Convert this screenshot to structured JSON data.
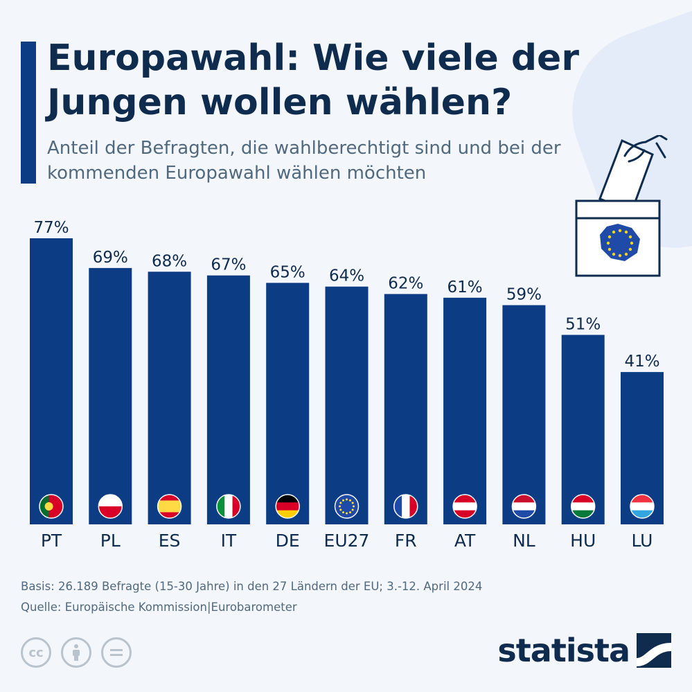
{
  "header": {
    "title": "Europawahl: Wie viele der Jungen wollen wählen?",
    "subtitle": "Anteil der Befragten, die wahlberechtigt sind und bei der kommenden Europawahl wählen möchten"
  },
  "chart_data": {
    "type": "bar",
    "categories": [
      "PT",
      "PL",
      "ES",
      "IT",
      "DE",
      "EU27",
      "FR",
      "AT",
      "NL",
      "HU",
      "LU"
    ],
    "values": [
      77,
      69,
      68,
      67,
      65,
      64,
      62,
      61,
      59,
      51,
      41
    ],
    "value_labels": [
      "77%",
      "69%",
      "68%",
      "67%",
      "65%",
      "64%",
      "62%",
      "61%",
      "59%",
      "51%",
      "41%"
    ],
    "unit": "%",
    "ylim": [
      0,
      77
    ],
    "grid": false,
    "bar_color": "#0c3c84"
  },
  "footer": {
    "basis": "Basis: 26.189 Befragte (15-30 Jahre) in den 27 Ländern der EU; 3.-12. April 2024",
    "source": "Quelle: Europäische Kommission|Eurobarometer",
    "brand": "statista"
  },
  "colors": {
    "primary": "#0c3c84",
    "text": "#0f2b4d",
    "muted": "#51697e"
  },
  "icons": [
    "ballot-box-icon",
    "cc-icon",
    "by-icon",
    "nd-icon",
    "statista-logo-icon"
  ]
}
